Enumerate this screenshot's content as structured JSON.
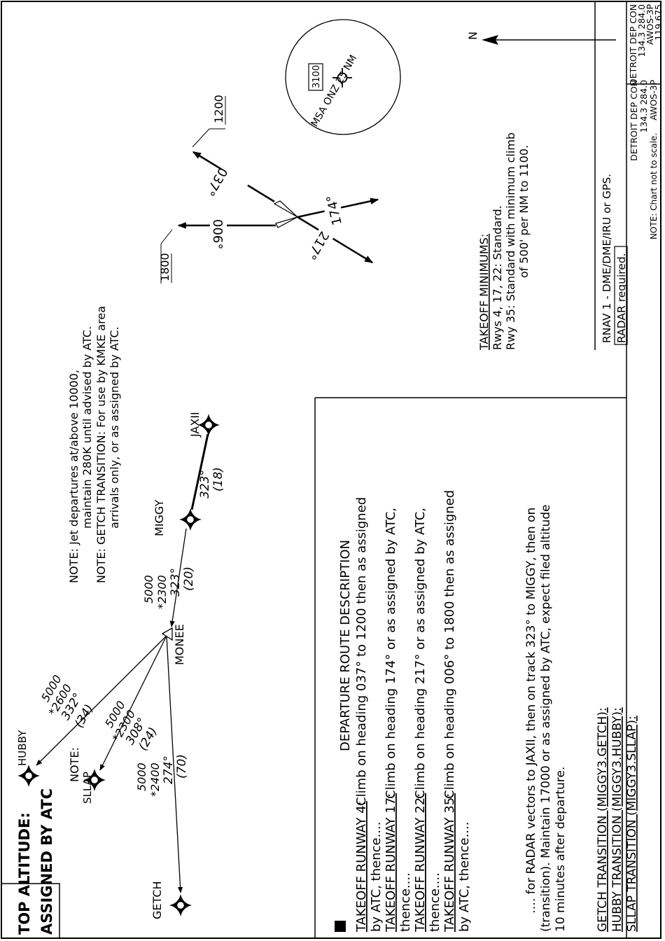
{
  "top_altitude": {
    "line1": "TOP ALTITUDE:",
    "line2": "ASSIGNED BY ATC"
  },
  "frequencies": [
    "DETROIT DEP CON",
    "134.3  284.0",
    "AWOS-3P",
    "119.675",
    "CTAF",
    "123.0"
  ],
  "requirements": {
    "rnav": "RNAV 1 - DME/DME/IRU or GPS.",
    "radar": "RADAR required."
  },
  "chart_note": "NOTE:  Chart not to scale.",
  "msa": {
    "label": "MSA ONZ 25 NM",
    "altitude": "3100"
  },
  "north": "N",
  "notes": {
    "note1_label": "NOTE:",
    "note1_line1": "Jet departures at/above 10000,",
    "note1_line2": "maintain 280K until advised by ATC.",
    "note2_label": "NOTE:",
    "note2_line1": "GETCH TRANSITION: For use by KMKE area",
    "note2_line2": "arrivals only, or as assigned by ATC."
  },
  "headings": {
    "h037": "037°",
    "h006": "006°",
    "h174": "174°",
    "h217": "217°",
    "alt1200": "1200",
    "alt1800": "1800"
  },
  "fixes": {
    "hubby": "HUBBY",
    "sllap": "SLLAP",
    "getch": "GETCH",
    "monee": "MONEE",
    "miggy": "MIGGY",
    "jaxii": "JAXII"
  },
  "segments": {
    "hubby": {
      "mea": "5000",
      "moca": "*2600",
      "course": "332°",
      "dist": "(34)"
    },
    "sllap": {
      "mea": "5000",
      "moca": "*2300",
      "course": "308°",
      "dist": "(24)"
    },
    "getch": {
      "mea": "5000",
      "moca": "*2400",
      "course": "274°",
      "dist": "(70)"
    },
    "monee": {
      "mea": "5000",
      "moca": "*2300",
      "course": "323°",
      "dist": "(20)"
    },
    "miggy": {
      "course": "323°",
      "dist": "(18)"
    }
  },
  "takeoff_minimums": {
    "title": "TAKEOFF MINIMUMS:",
    "line1": "Rwys 4, 17, 22:  Standard.",
    "line2": "Rwy 35:  Standard with minimum climb",
    "line3": "of 500' per NM to 1100."
  },
  "description": {
    "title": "DEPARTURE ROUTE DESCRIPTION",
    "rwy4_label": "TAKEOFF RUNWAY 4:",
    "rwy4_text": "  Climb on heading 037° to 1200 then as assigned",
    "rwy4_cont": "by ATC, thence....",
    "rwy17_label": "TAKEOFF RUNWAY 17:",
    "rwy17_text": "  Climb on heading 174° or as assigned by ATC,",
    "rwy17_cont": "thence....",
    "rwy22_label": "TAKEOFF RUNWAY 22:",
    "rwy22_text": "  Climb on heading 217° or as assigned by ATC,",
    "rwy22_cont": "thence....",
    "rwy35_label": "TAKEOFF RUNWAY 35:",
    "rwy35_text": "  Climb on heading 006° to 1800 then as assigned",
    "rwy35_cont": "by ATC, thence....",
    "para1": "…. for RADAR vectors to JAXII, then on track 323° to MIGGY, then on",
    "para2": "(transition). Maintain 17000 or as assigned by ATC, expect filed altitude",
    "para3": "10 minutes after departure.",
    "trans_getch": "GETCH TRANSITION (MIGGY3.GETCH):",
    "trans_hubby": "HUBBY TRANSITION (MIGGY3.HUBBY):",
    "trans_sllap": "SLLAP TRANSITION (MIGGY3.SLLAP):"
  }
}
